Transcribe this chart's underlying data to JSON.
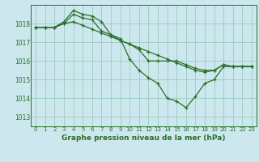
{
  "title": "Graphe pression niveau de la mer (hPa)",
  "bg_color": "#cce8ee",
  "grid_color": "#99ccbb",
  "line_color": "#2a6e2a",
  "xlim": [
    -0.5,
    23.5
  ],
  "ylim": [
    1012.5,
    1019.0
  ],
  "xticks": [
    0,
    1,
    2,
    3,
    4,
    5,
    6,
    7,
    8,
    9,
    10,
    11,
    12,
    13,
    14,
    15,
    16,
    17,
    18,
    19,
    20,
    21,
    22,
    23
  ],
  "yticks": [
    1013,
    1014,
    1015,
    1016,
    1017,
    1018
  ],
  "series": [
    [
      1017.8,
      1017.8,
      1017.8,
      1018.0,
      1018.1,
      1017.9,
      1017.7,
      1017.5,
      1017.3,
      1017.1,
      1016.9,
      1016.7,
      1016.5,
      1016.3,
      1016.1,
      1015.9,
      1015.7,
      1015.5,
      1015.4,
      1015.5,
      1015.8,
      1015.7,
      1015.7,
      1015.7
    ],
    [
      1017.8,
      1017.8,
      1017.8,
      1018.0,
      1018.5,
      1018.3,
      1018.2,
      1017.6,
      1017.4,
      1017.1,
      1016.9,
      1016.6,
      1016.0,
      1016.0,
      1016.0,
      1016.0,
      1015.8,
      1015.6,
      1015.5,
      1015.5,
      1015.8,
      1015.7,
      1015.7,
      1015.7
    ],
    [
      1017.8,
      1017.8,
      1017.8,
      1018.1,
      1018.7,
      1018.5,
      1018.4,
      1018.1,
      1017.4,
      1017.2,
      1016.1,
      1015.5,
      1015.1,
      1014.8,
      1014.0,
      1013.85,
      1013.5,
      1014.1,
      1014.8,
      1015.0,
      1015.7,
      1015.7,
      1015.7,
      1015.7
    ]
  ]
}
